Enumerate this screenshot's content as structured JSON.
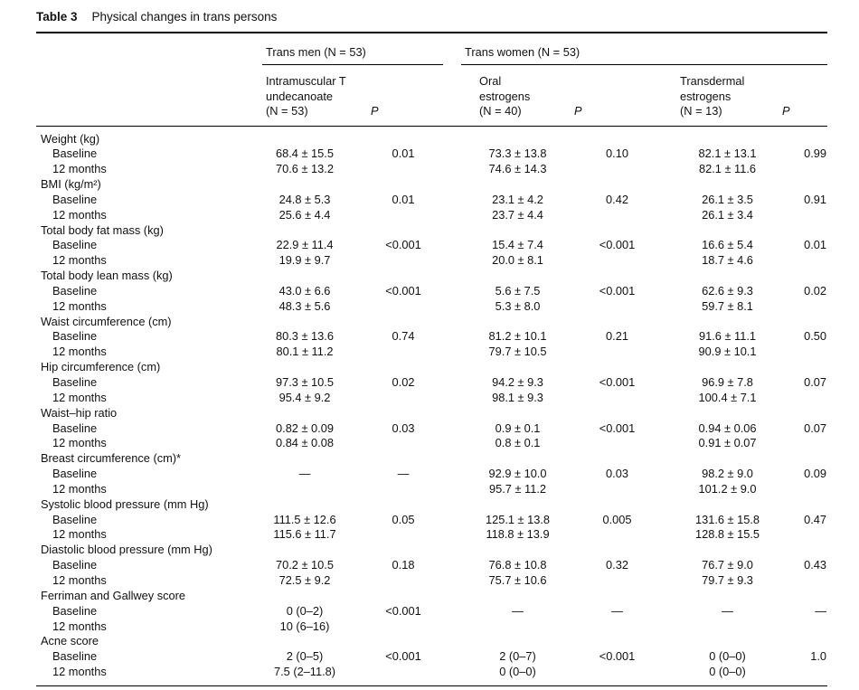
{
  "caption": {
    "label": "Table 3",
    "title": "Physical changes in trans persons"
  },
  "groups": [
    {
      "label": "Trans men (N = 53)"
    },
    {
      "label": "Trans women (N = 53)"
    }
  ],
  "columns": [
    {
      "line1": "Intramuscular T",
      "line2": "undecanoate",
      "line3": "(N = 53)",
      "p": "P"
    },
    {
      "line1": "Oral",
      "line2": "estrogens",
      "line3": "(N = 40)",
      "p": "P"
    },
    {
      "line1": "Transdermal",
      "line2": "estrogens",
      "line3": "(N = 13)",
      "p": "P"
    }
  ],
  "sections": [
    {
      "name": "Weight (kg)",
      "rows": [
        {
          "label": "Baseline",
          "v1": "68.4 ± 15.5",
          "p1": "0.01",
          "v2": "73.3 ± 13.8",
          "p2": "0.10",
          "v3": "82.1 ± 13.1",
          "p3": "0.99"
        },
        {
          "label": "12 months",
          "v1": "70.6 ± 13.2",
          "p1": "",
          "v2": "74.6 ± 14.3",
          "p2": "",
          "v3": "82.1 ± 11.6",
          "p3": ""
        }
      ]
    },
    {
      "name": "BMI (kg/m²)",
      "rows": [
        {
          "label": "Baseline",
          "v1": "24.8 ± 5.3",
          "p1": "0.01",
          "v2": "23.1 ± 4.2",
          "p2": "0.42",
          "v3": "26.1 ± 3.5",
          "p3": "0.91"
        },
        {
          "label": "12 months",
          "v1": "25.6 ± 4.4",
          "p1": "",
          "v2": "23.7 ± 4.4",
          "p2": "",
          "v3": "26.1 ± 3.4",
          "p3": ""
        }
      ]
    },
    {
      "name": "Total body fat mass (kg)",
      "rows": [
        {
          "label": "Baseline",
          "v1": "22.9 ± 11.4",
          "p1": "<0.001",
          "v2": "15.4 ± 7.4",
          "p2": "<0.001",
          "v3": "16.6 ± 5.4",
          "p3": "0.01"
        },
        {
          "label": "12 months",
          "v1": "19.9 ± 9.7",
          "p1": "",
          "v2": "20.0 ± 8.1",
          "p2": "",
          "v3": "18.7 ± 4.6",
          "p3": ""
        }
      ]
    },
    {
      "name": "Total body lean mass (kg)",
      "rows": [
        {
          "label": "Baseline",
          "v1": "43.0 ± 6.6",
          "p1": "<0.001",
          "v2": "5.6 ± 7.5",
          "p2": "<0.001",
          "v3": "62.6 ± 9.3",
          "p3": "0.02"
        },
        {
          "label": "12 months",
          "v1": "48.3 ± 5.6",
          "p1": "",
          "v2": "5.3 ± 8.0",
          "p2": "",
          "v3": "59.7 ± 8.1",
          "p3": ""
        }
      ]
    },
    {
      "name": "Waist circumference (cm)",
      "rows": [
        {
          "label": "Baseline",
          "v1": "80.3 ± 13.6",
          "p1": "0.74",
          "v2": "81.2 ± 10.1",
          "p2": "0.21",
          "v3": "91.6 ± 11.1",
          "p3": "0.50"
        },
        {
          "label": "12 months",
          "v1": "80.1 ± 11.2",
          "p1": "",
          "v2": "79.7 ± 10.5",
          "p2": "",
          "v3": "90.9 ± 10.1",
          "p3": ""
        }
      ]
    },
    {
      "name": "Hip circumference (cm)",
      "rows": [
        {
          "label": "Baseline",
          "v1": "97.3 ± 10.5",
          "p1": "0.02",
          "v2": "94.2 ± 9.3",
          "p2": "<0.001",
          "v3": "96.9 ± 7.8",
          "p3": "0.07"
        },
        {
          "label": "12 months",
          "v1": "95.4 ± 9.2",
          "p1": "",
          "v2": "98.1 ± 9.3",
          "p2": "",
          "v3": "100.4 ± 7.1",
          "p3": ""
        }
      ]
    },
    {
      "name": "Waist–hip ratio",
      "rows": [
        {
          "label": "Baseline",
          "v1": "0.82 ± 0.09",
          "p1": "0.03",
          "v2": "0.9 ± 0.1",
          "p2": "<0.001",
          "v3": "0.94 ± 0.06",
          "p3": "0.07"
        },
        {
          "label": "12 months",
          "v1": "0.84 ± 0.08",
          "p1": "",
          "v2": "0.8 ± 0.1",
          "p2": "",
          "v3": "0.91 ± 0.07",
          "p3": ""
        }
      ]
    },
    {
      "name": "Breast circumference (cm)*",
      "rows": [
        {
          "label": "Baseline",
          "v1": "—",
          "p1": "—",
          "v2": "92.9 ± 10.0",
          "p2": "0.03",
          "v3": "98.2 ± 9.0",
          "p3": "0.09"
        },
        {
          "label": "12 months",
          "v1": "",
          "p1": "",
          "v2": "95.7 ± 11.2",
          "p2": "",
          "v3": "101.2 ± 9.0",
          "p3": ""
        }
      ]
    },
    {
      "name": "Systolic blood pressure (mm Hg)",
      "rows": [
        {
          "label": "Baseline",
          "v1": "111.5 ± 12.6",
          "p1": "0.05",
          "v2": "125.1 ± 13.8",
          "p2": "0.005",
          "v3": "131.6 ± 15.8",
          "p3": "0.47"
        },
        {
          "label": "12 months",
          "v1": "115.6 ± 11.7",
          "p1": "",
          "v2": "118.8 ± 13.9",
          "p2": "",
          "v3": "128.8 ± 15.5",
          "p3": ""
        }
      ]
    },
    {
      "name": "Diastolic blood pressure (mm Hg)",
      "rows": [
        {
          "label": "Baseline",
          "v1": "70.2 ± 10.5",
          "p1": "0.18",
          "v2": "76.8 ± 10.8",
          "p2": "0.32",
          "v3": "76.7 ± 9.0",
          "p3": "0.43"
        },
        {
          "label": "12 months",
          "v1": "72.5 ± 9.2",
          "p1": "",
          "v2": "75.7 ± 10.6",
          "p2": "",
          "v3": "79.7 ± 9.3",
          "p3": ""
        }
      ]
    },
    {
      "name": "Ferriman and Gallwey score",
      "rows": [
        {
          "label": "Baseline",
          "v1": "0 (0–2)",
          "p1": "<0.001",
          "v2": "—",
          "p2": "—",
          "v3": "—",
          "p3": "—"
        },
        {
          "label": "12 months",
          "v1": "10 (6–16)",
          "p1": "",
          "v2": "",
          "p2": "",
          "v3": "",
          "p3": ""
        }
      ]
    },
    {
      "name": "Acne score",
      "rows": [
        {
          "label": "Baseline",
          "v1": "2 (0–5)",
          "p1": "<0.001",
          "v2": "2 (0–7)",
          "p2": "<0.001",
          "v3": "0 (0–0)",
          "p3": "1.0"
        },
        {
          "label": "12 months",
          "v1": "7.5 (2–11.8)",
          "p1": "",
          "v2": "0 (0–0)",
          "p2": "",
          "v3": "0 (0–0)",
          "p3": ""
        }
      ]
    }
  ]
}
